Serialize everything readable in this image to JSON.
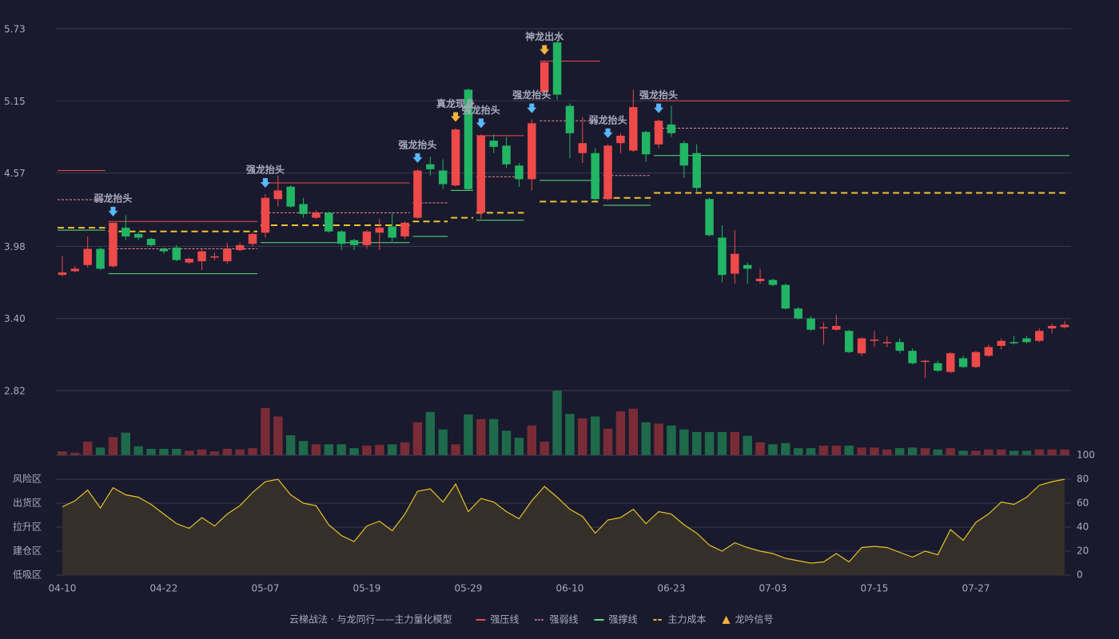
{
  "chart_data": [
    {
      "type": "candlestick",
      "ylim": [
        2.82,
        5.73
      ],
      "yticks": [
        5.73,
        5.15,
        4.57,
        3.98,
        {
          "value": 3.4,
          "label": "3.40"
        },
        2.82
      ],
      "grid": true,
      "up_color": "#ee4a4a",
      "down_color": "#22b564",
      "categories": [
        "04-10",
        null,
        null,
        null,
        null,
        null,
        null,
        null,
        "04-22",
        null,
        null,
        null,
        null,
        null,
        null,
        null,
        "05-07",
        null,
        null,
        null,
        null,
        null,
        null,
        null,
        "05-19",
        null,
        null,
        null,
        null,
        null,
        null,
        null,
        "05-29",
        null,
        null,
        null,
        null,
        null,
        null,
        null,
        "06-10",
        null,
        null,
        null,
        null,
        null,
        null,
        null,
        "06-23",
        null,
        null,
        null,
        null,
        null,
        null,
        null,
        "07-03",
        null,
        null,
        null,
        null,
        null,
        null,
        null,
        "07-15",
        null,
        null,
        null,
        null,
        null,
        null,
        null,
        "07-27",
        null,
        null,
        null,
        null,
        null,
        null,
        null
      ],
      "open": [
        3.75,
        3.78,
        3.83,
        3.96,
        3.82,
        4.13,
        4.08,
        4.04,
        3.96,
        3.97,
        3.85,
        3.86,
        3.89,
        3.86,
        3.95,
        4.0,
        4.09,
        4.36,
        4.46,
        4.32,
        4.21,
        4.25,
        4.1,
        4.03,
        3.99,
        4.09,
        4.14,
        4.06,
        4.21,
        4.64,
        4.59,
        4.47,
        5.24,
        4.25,
        4.83,
        4.79,
        4.63,
        4.52,
        5.22,
        5.62,
        5.11,
        4.73,
        4.73,
        4.36,
        4.81,
        4.75,
        4.9,
        4.8,
        4.96,
        4.81,
        4.73,
        4.36,
        4.05,
        3.76,
        3.83,
        3.7,
        3.71,
        3.67,
        3.48,
        3.4,
        3.32,
        3.31,
        3.3,
        3.12,
        3.22,
        3.2,
        3.21,
        3.14,
        3.05,
        3.04,
        2.97,
        3.08,
        3.01,
        3.1,
        3.18,
        3.21,
        3.24,
        3.22,
        3.32,
        3.33
      ],
      "high": [
        3.9,
        3.82,
        4.06,
        3.97,
        4.17,
        4.23,
        4.1,
        4.05,
        3.97,
        3.99,
        3.89,
        3.96,
        3.93,
        4.01,
        4.01,
        4.09,
        4.4,
        4.55,
        4.47,
        4.37,
        4.27,
        4.26,
        4.11,
        4.04,
        4.11,
        4.2,
        4.25,
        4.18,
        4.6,
        4.7,
        4.68,
        4.93,
        5.25,
        4.88,
        4.88,
        4.86,
        4.65,
        5.0,
        5.47,
        5.63,
        5.13,
        5.02,
        4.77,
        4.8,
        4.89,
        5.24,
        4.91,
        5.0,
        5.11,
        4.83,
        4.8,
        4.37,
        4.15,
        4.11,
        3.85,
        3.8,
        3.72,
        3.68,
        3.49,
        3.42,
        3.37,
        3.43,
        3.31,
        3.25,
        3.3,
        3.26,
        3.24,
        3.16,
        3.07,
        3.06,
        3.13,
        3.1,
        3.14,
        3.19,
        3.24,
        3.26,
        3.26,
        3.32,
        3.36,
        3.38
      ],
      "low": [
        3.74,
        3.77,
        3.81,
        3.79,
        3.81,
        4.03,
        4.03,
        3.98,
        3.92,
        3.86,
        3.84,
        3.79,
        3.87,
        3.84,
        3.94,
        3.98,
        4.05,
        4.3,
        4.29,
        4.21,
        4.2,
        4.09,
        3.95,
        3.95,
        3.96,
        3.95,
        4.02,
        4.04,
        4.2,
        4.55,
        4.44,
        4.46,
        4.43,
        4.2,
        4.73,
        4.61,
        4.46,
        4.43,
        5.2,
        5.16,
        4.69,
        4.65,
        4.35,
        4.35,
        4.73,
        4.74,
        4.66,
        4.77,
        4.86,
        4.53,
        4.42,
        4.06,
        3.69,
        3.68,
        3.68,
        3.68,
        3.66,
        3.47,
        3.39,
        3.3,
        3.19,
        3.3,
        3.12,
        3.1,
        3.17,
        3.17,
        3.12,
        3.03,
        2.92,
        2.97,
        2.96,
        3.0,
        3.0,
        3.09,
        3.15,
        3.19,
        3.2,
        3.21,
        3.28,
        3.32
      ],
      "close": [
        3.77,
        3.8,
        3.96,
        3.8,
        4.17,
        4.06,
        4.05,
        3.99,
        3.94,
        3.87,
        3.88,
        3.94,
        3.9,
        3.96,
        3.99,
        4.08,
        4.37,
        4.43,
        4.3,
        4.24,
        4.25,
        4.1,
        4.0,
        3.99,
        4.1,
        4.13,
        4.05,
        4.17,
        4.59,
        4.6,
        4.48,
        4.92,
        4.44,
        4.87,
        4.78,
        4.64,
        4.52,
        4.97,
        5.46,
        5.2,
        4.89,
        4.81,
        4.36,
        4.79,
        4.87,
        5.1,
        4.72,
        4.99,
        4.89,
        4.63,
        4.45,
        4.07,
        3.75,
        3.92,
        3.8,
        3.72,
        3.67,
        3.48,
        3.4,
        3.31,
        3.33,
        3.34,
        3.13,
        3.24,
        3.23,
        3.21,
        3.14,
        3.04,
        3.06,
        2.98,
        3.12,
        3.01,
        3.13,
        3.17,
        3.22,
        3.2,
        3.21,
        3.3,
        3.34,
        3.35
      ],
      "levels": [
        {
          "name": "强压线",
          "color": "#ee4a4a",
          "style": "solid",
          "segments": [
            {
              "start": 0,
              "end": 3,
              "value": 4.59
            },
            {
              "start": 4,
              "end": 15,
              "value": 4.18
            },
            {
              "start": 16,
              "end": 27,
              "value": 4.49
            },
            {
              "start": 33,
              "end": 36,
              "value": 4.87
            },
            {
              "start": 38,
              "end": 42,
              "value": 5.47
            },
            {
              "start": 47,
              "end": 79,
              "value": 5.15
            }
          ]
        },
        {
          "name": "强弱线",
          "color": "#f08a9a",
          "style": "dot",
          "segments": [
            {
              "start": 0,
              "end": 3,
              "value": 4.355
            },
            {
              "start": 4,
              "end": 15,
              "value": 3.96
            },
            {
              "start": 16,
              "end": 27,
              "value": 4.25
            },
            {
              "start": 28,
              "end": 30,
              "value": 4.33
            },
            {
              "start": 33,
              "end": 36,
              "value": 4.54
            },
            {
              "start": 38,
              "end": 42,
              "value": 4.99
            },
            {
              "start": 43,
              "end": 46,
              "value": 4.55
            },
            {
              "start": 47,
              "end": 79,
              "value": 4.93
            }
          ]
        },
        {
          "name": "强撑线",
          "color": "#5fe07a",
          "style": "solid",
          "segments": [
            {
              "start": 0,
              "end": 3,
              "value": 4.11
            },
            {
              "start": 4,
              "end": 15,
              "value": 3.76
            },
            {
              "start": 16,
              "end": 27,
              "value": 4.01
            },
            {
              "start": 28,
              "end": 30,
              "value": 4.06
            },
            {
              "start": 31,
              "end": 32,
              "value": 4.43
            },
            {
              "start": 33,
              "end": 36,
              "value": 4.19
            },
            {
              "start": 38,
              "end": 42,
              "value": 4.51
            },
            {
              "start": 43,
              "end": 46,
              "value": 4.31
            },
            {
              "start": 47,
              "end": 79,
              "value": 4.71
            }
          ]
        },
        {
          "name": "主力成本",
          "color": "#f2c12e",
          "style": "dash",
          "segments": [
            {
              "start": 0,
              "end": 3,
              "value": 4.13
            },
            {
              "start": 4,
              "end": 15,
              "value": 4.1
            },
            {
              "start": 16,
              "end": 27,
              "value": 4.15
            },
            {
              "start": 28,
              "end": 30,
              "value": 4.18
            },
            {
              "start": 31,
              "end": 32,
              "value": 4.21
            },
            {
              "start": 33,
              "end": 36,
              "value": 4.25
            },
            {
              "start": 38,
              "end": 42,
              "value": 4.34
            },
            {
              "start": 43,
              "end": 46,
              "value": 4.37
            },
            {
              "start": 47,
              "end": 79,
              "value": 4.41
            }
          ]
        }
      ],
      "signals": {
        "name": "龙吟信号",
        "color": "#f5b33a",
        "items": [
          {
            "text": "弱龙抬头",
            "index": 4,
            "color": "#5ab8ff"
          },
          {
            "text": "强龙抬头",
            "index": 16,
            "color": "#5ab8ff"
          },
          {
            "text": "强龙抬头",
            "index": 28,
            "color": "#5ab8ff"
          },
          {
            "text": "真龙现身",
            "index": 31,
            "color": "#f5b33a"
          },
          {
            "text": "强龙抬头",
            "index": 33,
            "color": "#5ab8ff"
          },
          {
            "text": "强龙抬头",
            "index": 37,
            "color": "#5ab8ff"
          },
          {
            "text": "神龙出水",
            "index": 38,
            "color": "#f5b33a"
          },
          {
            "text": "弱龙抬头",
            "index": 43,
            "color": "#5ab8ff"
          },
          {
            "text": "强龙抬头",
            "index": 47,
            "color": "#5ab8ff"
          }
        ]
      },
      "legend_title": "云梯战法 · 与龙同行——主力量化模型"
    },
    {
      "type": "bar",
      "ylim": [
        0,
        100
      ],
      "up_color": "#7a2c36",
      "down_color": "#1e6a4a",
      "values": [
        6,
        4,
        21,
        12,
        28,
        35,
        14,
        10,
        10,
        10,
        7,
        9,
        6,
        10,
        9,
        11,
        73,
        60,
        31,
        22,
        17,
        17,
        17,
        11,
        15,
        16,
        17,
        20,
        51,
        67,
        40,
        17,
        63,
        56,
        56,
        38,
        27,
        46,
        21,
        100,
        64,
        57,
        60,
        41,
        68,
        72,
        51,
        49,
        46,
        40,
        36,
        36,
        36,
        36,
        30,
        20,
        17,
        19,
        11,
        11,
        15,
        15,
        15,
        12,
        12,
        9,
        11,
        12,
        11,
        9,
        11,
        7,
        7,
        9,
        9,
        7,
        7,
        9,
        9,
        9
      ]
    },
    {
      "type": "line",
      "ylim": [
        0,
        100
      ],
      "color": "#e6c229",
      "fill": "#3a3428",
      "yticks": [
        0,
        20,
        40,
        60,
        80,
        100
      ],
      "ytick_colors": [
        "#ff4d4d",
        "#ff7a3a",
        "#4a9eff",
        "#e040fb",
        "#f5a623",
        "#33ff66"
      ],
      "zones": [
        {
          "value": 80,
          "label": "风险区",
          "color": "#f5a623"
        },
        {
          "value": 60,
          "label": "出货区",
          "color": "#e040fb"
        },
        {
          "value": 40,
          "label": "拉升区",
          "color": "#4a9eff"
        },
        {
          "value": 20,
          "label": "建仓区",
          "color": "#ff5a5a"
        },
        {
          "value": 0,
          "label": "低吸区",
          "color": "#ff4d4d"
        }
      ],
      "values": [
        57,
        62,
        71,
        56,
        73,
        67,
        65,
        59,
        51,
        43,
        39,
        48,
        41,
        51,
        58,
        69,
        78,
        80,
        67,
        60,
        58,
        42,
        33,
        28,
        41,
        45,
        37,
        51,
        70,
        72,
        61,
        76,
        53,
        64,
        61,
        53,
        47,
        62,
        74,
        65,
        55,
        49,
        35,
        46,
        48,
        55,
        43,
        53,
        51,
        42,
        35,
        25,
        20,
        27,
        23,
        20,
        18,
        14,
        12,
        10,
        11,
        18,
        11,
        23,
        24,
        23,
        19,
        15,
        20,
        17,
        38,
        29,
        44,
        51,
        61,
        59,
        65,
        75,
        78,
        80
      ]
    }
  ]
}
